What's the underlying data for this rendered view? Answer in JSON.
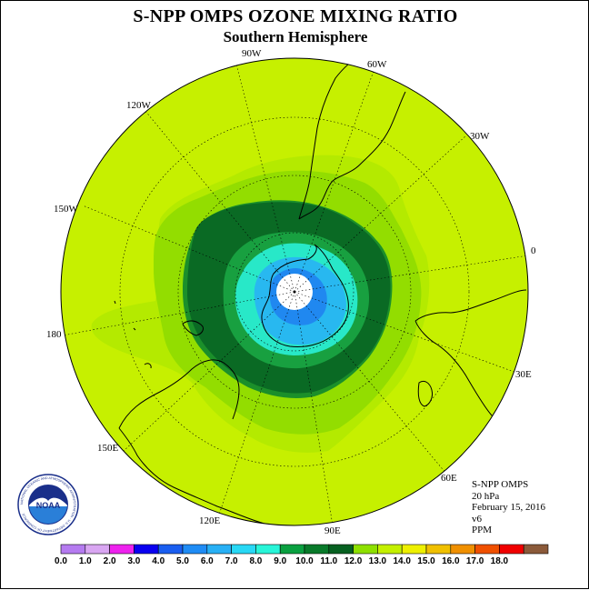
{
  "title": "S-NPP OMPS OZONE MIXING RATIO",
  "subtitle": "Southern Hemisphere",
  "longitude_labels": [
    {
      "text": "90W",
      "lon": -90
    },
    {
      "text": "60W",
      "lon": -60
    },
    {
      "text": "30W",
      "lon": -30
    },
    {
      "text": "0",
      "lon": 0
    },
    {
      "text": "30E",
      "lon": 30
    },
    {
      "text": "60E",
      "lon": 60
    },
    {
      "text": "90E",
      "lon": 90
    },
    {
      "text": "120E",
      "lon": 120
    },
    {
      "text": "150E",
      "lon": 150
    },
    {
      "text": "180",
      "lon": 180
    },
    {
      "text": "150W",
      "lon": -150
    },
    {
      "text": "120W",
      "lon": -120
    }
  ],
  "info": {
    "instrument": "S-NPP OMPS",
    "level": "20 hPa",
    "date": "February 15, 2016",
    "version": "v6",
    "units": "PPM"
  },
  "logo": {
    "text": "NOAA",
    "ring_text": "NATIONAL OCEANIC AND ATMOSPHERIC ADMINISTRATION · U.S. DEPARTMENT OF COMMERCE",
    "icon": "noaa-logo-icon"
  },
  "colorbar": {
    "labels": [
      "0.0",
      "1.0",
      "2.0",
      "3.0",
      "4.0",
      "5.0",
      "6.0",
      "7.0",
      "8.0",
      "9.0",
      "10.0",
      "11.0",
      "12.0",
      "13.0",
      "14.0",
      "15.0",
      "16.0",
      "17.0",
      "18.0"
    ],
    "colors": [
      "#b57bf0",
      "#d9a6f2",
      "#ee22ee",
      "#0a00f0",
      "#1a5ef0",
      "#1f8cf5",
      "#28b0f5",
      "#28d8f5",
      "#28f5d8",
      "#0aa040",
      "#087a2a",
      "#066020",
      "#8ee000",
      "#c4f000",
      "#eef000",
      "#f0c000",
      "#f09000",
      "#f05000",
      "#f00000",
      "#8b5a3a"
    ]
  },
  "map_data": {
    "projection": "south-polar-stereographic",
    "bands": [
      {
        "level": "10-11",
        "color": "#a0e800"
      },
      {
        "level": "9-10",
        "color": "#1b8f2a"
      },
      {
        "level": "8-9",
        "color": "#0a6a24"
      },
      {
        "level": "7-8",
        "color": "#18a040"
      },
      {
        "level": "6-7",
        "color": "#28e8c8"
      },
      {
        "level": "5-6",
        "color": "#28b8f0"
      },
      {
        "level": "4-5",
        "color": "#2088f0"
      }
    ],
    "background_color": "#c6f000"
  }
}
